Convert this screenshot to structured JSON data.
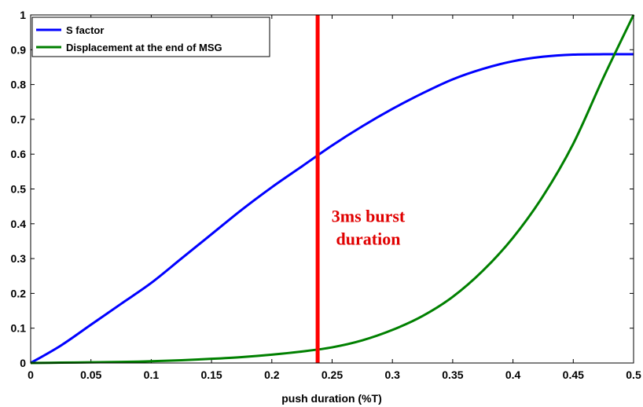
{
  "chart_data": {
    "type": "line",
    "xlabel": "push duration (%T)",
    "ylabel": "",
    "xlim": [
      0,
      0.5
    ],
    "ylim": [
      0,
      1
    ],
    "xticks": [
      "0",
      "0.05",
      "0.1",
      "0.15",
      "0.2",
      "0.25",
      "0.3",
      "0.35",
      "0.4",
      "0.45",
      "0.5"
    ],
    "yticks": [
      "0",
      "0.1",
      "0.2",
      "0.3",
      "0.4",
      "0.5",
      "0.6",
      "0.7",
      "0.8",
      "0.9",
      "1"
    ],
    "grid": false,
    "legend_position": "top-left",
    "series": [
      {
        "name": "S factor",
        "color": "#0000ff",
        "x": [
          0,
          0.025,
          0.05,
          0.075,
          0.1,
          0.125,
          0.15,
          0.175,
          0.2,
          0.225,
          0.25,
          0.275,
          0.3,
          0.325,
          0.35,
          0.375,
          0.4,
          0.425,
          0.45,
          0.475,
          0.5
        ],
        "y": [
          0,
          0.05,
          0.11,
          0.17,
          0.23,
          0.3,
          0.37,
          0.44,
          0.505,
          0.565,
          0.625,
          0.68,
          0.73,
          0.775,
          0.815,
          0.845,
          0.867,
          0.88,
          0.886,
          0.887,
          0.887
        ]
      },
      {
        "name": "Displacement at the end of MSG",
        "color": "#008000",
        "x": [
          0,
          0.025,
          0.05,
          0.075,
          0.1,
          0.125,
          0.15,
          0.175,
          0.2,
          0.225,
          0.25,
          0.275,
          0.3,
          0.325,
          0.35,
          0.375,
          0.4,
          0.425,
          0.45,
          0.475,
          0.5
        ],
        "y": [
          0,
          0.001,
          0.002,
          0.003,
          0.005,
          0.008,
          0.012,
          0.017,
          0.024,
          0.033,
          0.045,
          0.065,
          0.095,
          0.135,
          0.19,
          0.265,
          0.36,
          0.48,
          0.63,
          0.82,
          1.0
        ]
      }
    ],
    "vline": {
      "x": 0.238,
      "color": "#ff0000"
    },
    "annotation": {
      "lines": [
        "3ms burst",
        "duration"
      ],
      "color": "#e00000",
      "x": 0.28,
      "y_lines": [
        0.405,
        0.34
      ]
    }
  }
}
